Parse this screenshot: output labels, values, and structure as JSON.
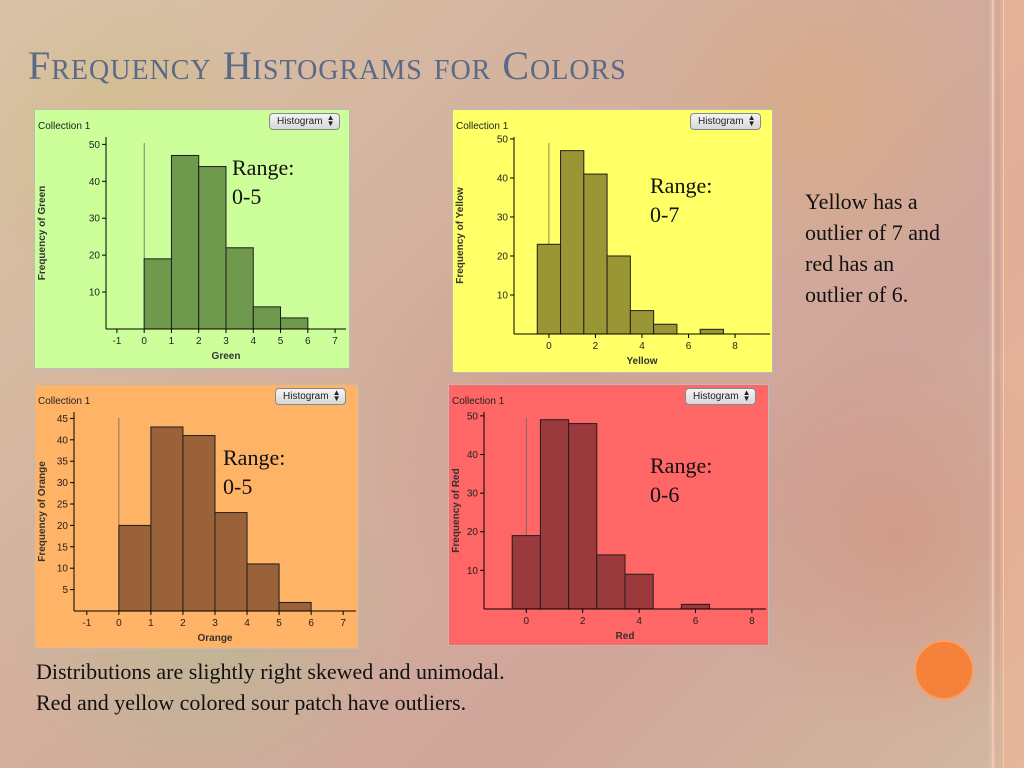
{
  "slide": {
    "title": "Frequency Histograms for Colors",
    "note": "Yellow has a outlier of 7 and red has an outlier of 6.",
    "summary": [
      "Distributions are slightly right skewed and unimodal.",
      "Red and yellow colored sour patch have outliers."
    ]
  },
  "chart_data": [
    {
      "type": "bar",
      "collection": "Collection 1",
      "menu": "Histogram",
      "xlabel": "Green",
      "ylabel": "Frequency of Green",
      "bin_edges": [
        0,
        1,
        2,
        3,
        4,
        5,
        6
      ],
      "values": [
        19,
        47,
        44,
        22,
        6,
        3
      ],
      "xticks": [
        -1,
        0,
        1,
        2,
        3,
        4,
        5,
        6,
        7
      ],
      "xlim": [
        -1.4,
        7.4
      ],
      "yticks": [
        10,
        20,
        30,
        40,
        50
      ],
      "ylim": [
        0,
        52
      ],
      "range_label": [
        "Range:",
        "0-5"
      ],
      "bg": "#ccff99",
      "bar_color": "#6f9a4e"
    },
    {
      "type": "bar",
      "collection": "Collection 1",
      "menu": "Histogram",
      "xlabel": "Yellow",
      "ylabel": "Frequency of Yellow",
      "bin_edges": [
        -0.5,
        0.5,
        1.5,
        2.5,
        3.5,
        4.5,
        5.5,
        6.5,
        7.5
      ],
      "values": [
        23,
        47,
        41,
        20,
        6,
        2.5,
        0,
        1.2
      ],
      "xticks": [
        0,
        2,
        4,
        6,
        8
      ],
      "xlim": [
        -1.5,
        9.5
      ],
      "yticks": [
        10,
        20,
        30,
        40,
        50
      ],
      "ylim": [
        0,
        50.5
      ],
      "range_label": [
        "Range:",
        "0-7"
      ],
      "bg": "#ffff66",
      "bar_color": "#9b9635"
    },
    {
      "type": "bar",
      "collection": "Collection 1",
      "menu": "Histogram",
      "xlabel": "Orange",
      "ylabel": "Frequency of Orange",
      "bin_edges": [
        0,
        1,
        2,
        3,
        4,
        5,
        6
      ],
      "values": [
        20,
        43,
        41,
        23,
        11,
        2
      ],
      "xticks": [
        -1,
        0,
        1,
        2,
        3,
        4,
        5,
        6,
        7
      ],
      "xlim": [
        -1.4,
        7.4
      ],
      "yticks": [
        5,
        10,
        15,
        20,
        25,
        30,
        35,
        40,
        45
      ],
      "ylim": [
        0,
        46.5
      ],
      "range_label": [
        "Range:",
        "0-5"
      ],
      "bg": "#ffb366",
      "bar_color": "#9a6239"
    },
    {
      "type": "bar",
      "collection": "Collection 1",
      "menu": "Histogram",
      "xlabel": "Red",
      "ylabel": "Frequency of Red",
      "bin_edges": [
        -0.5,
        0.5,
        1.5,
        2.5,
        3.5,
        4.5,
        5.5,
        6.5
      ],
      "values": [
        19,
        49,
        48,
        14,
        9,
        0,
        1.2
      ],
      "xticks": [
        0,
        2,
        4,
        6,
        8
      ],
      "xlim": [
        -1.5,
        8.5
      ],
      "yticks": [
        10,
        20,
        30,
        40,
        50
      ],
      "ylim": [
        0,
        51
      ],
      "range_label": [
        "Range:",
        "0-6"
      ],
      "bg": "#ff6666",
      "bar_color": "#9a3a3d"
    }
  ]
}
